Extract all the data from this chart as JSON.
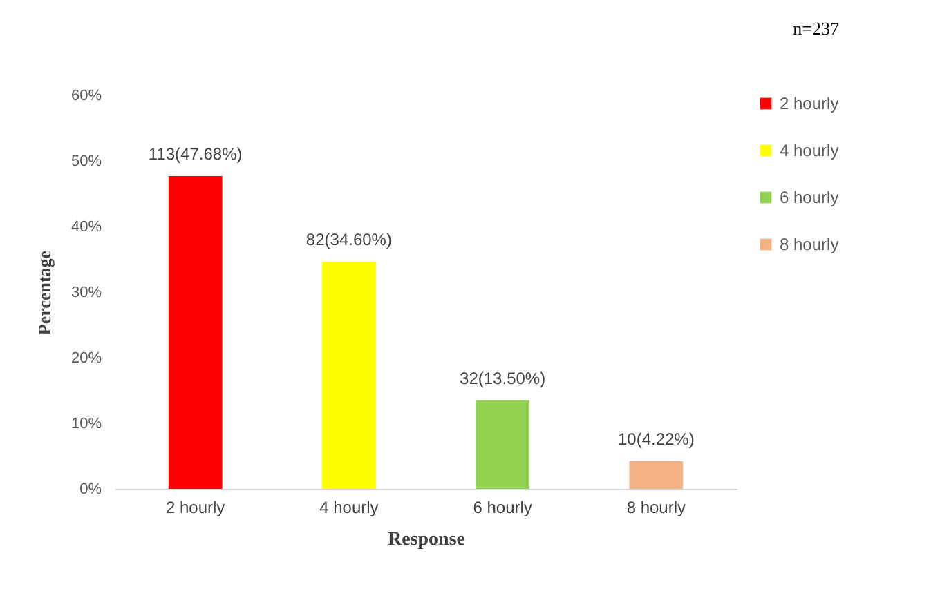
{
  "chart_data": {
    "type": "bar",
    "stacked": true,
    "xlabel": "Response",
    "ylabel": "Percentage",
    "annotations": [
      "n=237"
    ],
    "categories": [
      "2 hourly",
      "4 hourly",
      "6 hourly",
      "8 hourly"
    ],
    "series": [
      {
        "name": "2 hourly",
        "color": "#ff0000",
        "values": [
          47.68,
          null,
          null,
          null
        ],
        "value_labels": [
          "113(47.68%)",
          null,
          null,
          null
        ]
      },
      {
        "name": "4 hourly",
        "color": "#ffff00",
        "values": [
          null,
          34.6,
          null,
          null
        ],
        "value_labels": [
          null,
          "82(34.60%)",
          null,
          null
        ]
      },
      {
        "name": "6 hourly",
        "color": "#92d050",
        "values": [
          null,
          null,
          13.5,
          null
        ],
        "value_labels": [
          null,
          null,
          "32(13.50%)",
          null
        ]
      },
      {
        "name": "8 hourly",
        "color": "#f4b183",
        "values": [
          null,
          null,
          null,
          4.22
        ],
        "value_labels": [
          null,
          null,
          null,
          "10(4.22%)"
        ]
      }
    ],
    "ylim": [
      0,
      60
    ],
    "yticks": [
      {
        "value": 0,
        "label": "0%"
      },
      {
        "value": 10,
        "label": "10%"
      },
      {
        "value": 20,
        "label": "20%"
      },
      {
        "value": 30,
        "label": "30%"
      },
      {
        "value": 40,
        "label": "40%"
      },
      {
        "value": 50,
        "label": "50%"
      },
      {
        "value": 60,
        "label": "60%"
      }
    ],
    "legend": "right"
  }
}
